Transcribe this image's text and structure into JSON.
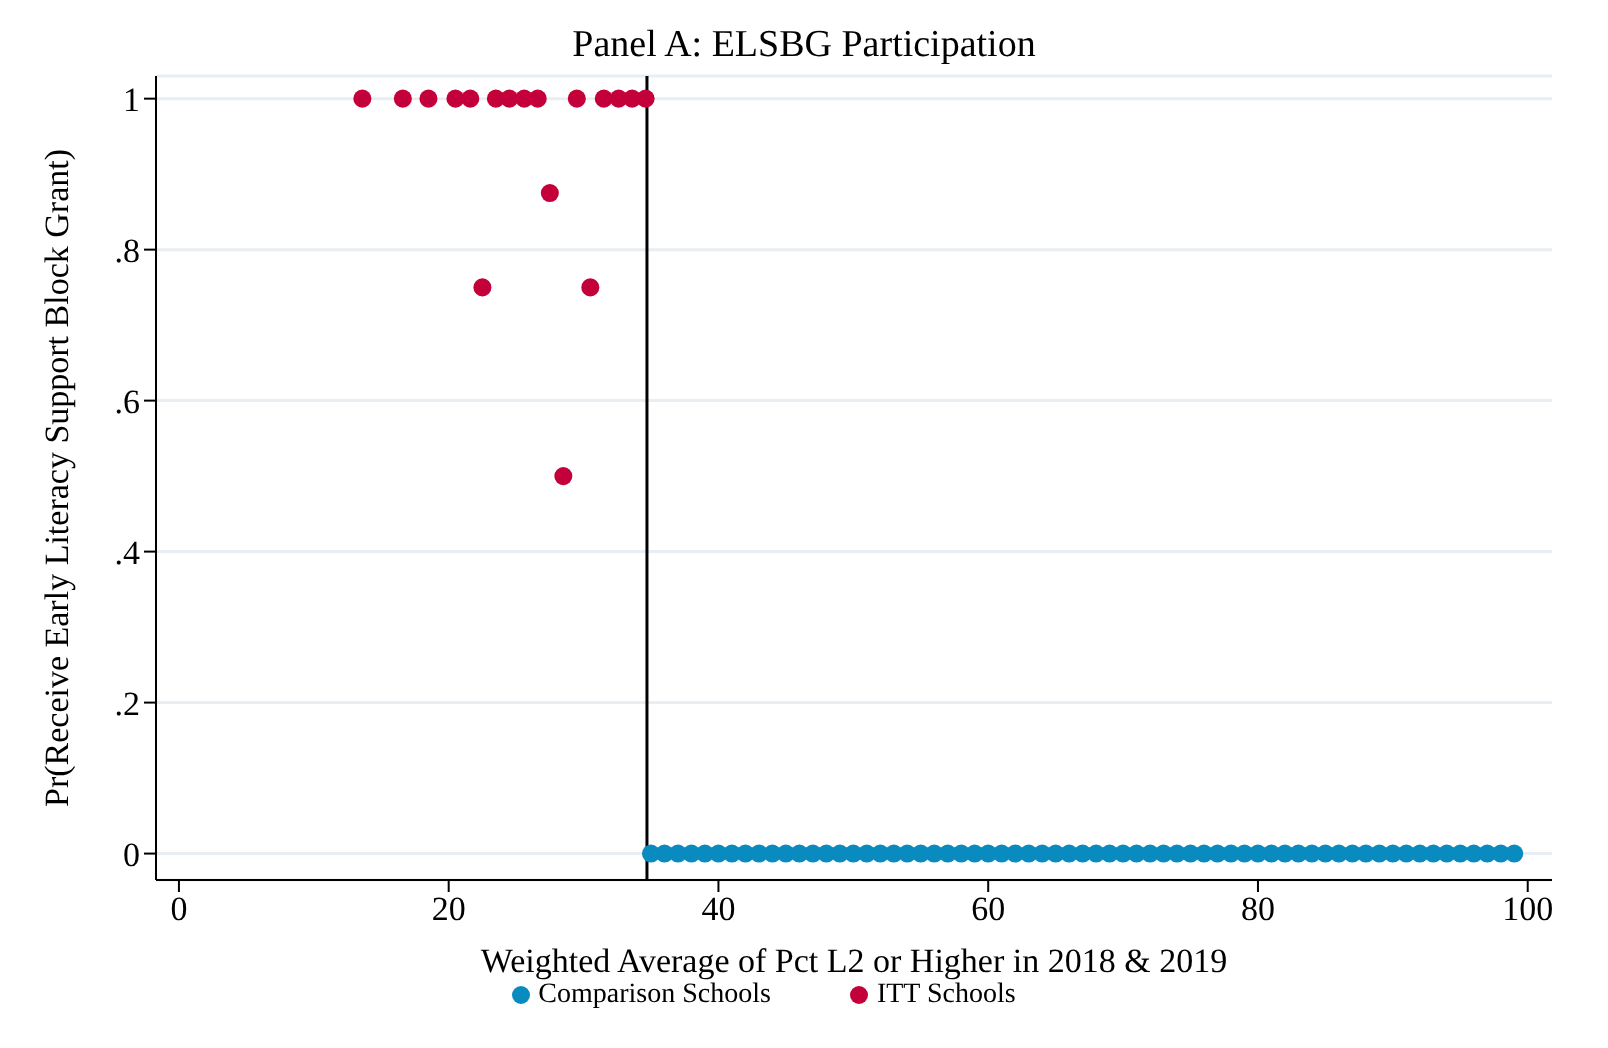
{
  "chart_data": {
    "type": "scatter",
    "title": "Panel A: ELSBG Participation",
    "xlabel": "Weighted Average of Pct L2 or Higher in 2018 & 2019",
    "ylabel": "Pr(Receive Early Literacy Support Block Grant)",
    "series": [
      {
        "name": "ITT Schools",
        "color": "#c4003a",
        "x": [
          13.6,
          16.6,
          18.5,
          20.5,
          21.6,
          23.5,
          24.5,
          25.6,
          26.6,
          29.5,
          31.5,
          32.6,
          33.6,
          34.6,
          27.5,
          22.5,
          30.5,
          28.5
        ],
        "values": [
          1,
          1,
          1,
          1,
          1,
          1,
          1,
          1,
          1,
          1,
          1,
          1,
          1,
          1,
          0.875,
          0.75,
          0.75,
          0.5
        ]
      },
      {
        "name": "Comparison Schools",
        "color": "#0a8bbf",
        "x": [
          35,
          36,
          37,
          38,
          39,
          40,
          41,
          42,
          43,
          44,
          45,
          46,
          47,
          48,
          49,
          50,
          51,
          52,
          53,
          54,
          55,
          56,
          57,
          58,
          59,
          60,
          61,
          62,
          63,
          64,
          65,
          66,
          67,
          68,
          69,
          70,
          71,
          72,
          73,
          74,
          75,
          76,
          77,
          78,
          79,
          80,
          81,
          82,
          83,
          84,
          85,
          86,
          87,
          88,
          89,
          90,
          91,
          92,
          93,
          94,
          95,
          96,
          97,
          98,
          99
        ],
        "values": [
          0,
          0,
          0,
          0,
          0,
          0,
          0,
          0,
          0,
          0,
          0,
          0,
          0,
          0,
          0,
          0,
          0,
          0,
          0,
          0,
          0,
          0,
          0,
          0,
          0,
          0,
          0,
          0,
          0,
          0,
          0,
          0,
          0,
          0,
          0,
          0,
          0,
          0,
          0,
          0,
          0,
          0,
          0,
          0,
          0,
          0,
          0,
          0,
          0,
          0,
          0,
          0,
          0,
          0,
          0,
          0,
          0,
          0,
          0,
          0,
          0,
          0,
          0,
          0,
          0
        ]
      }
    ],
    "xlim": [
      -1.7,
      101.8
    ],
    "xticks": [
      0,
      20,
      40,
      60,
      80,
      100
    ],
    "ylim": [
      -0.035,
      1.03
    ],
    "yticks": [
      0,
      {
        "value": 0.2,
        "label": ".2"
      },
      {
        "value": 0.4,
        "label": ".4"
      },
      {
        "value": 0.6,
        "label": ".6"
      },
      {
        "value": 0.8,
        "label": ".8"
      },
      1
    ],
    "ref_lines": [
      {
        "axis": "x",
        "value": 34.7,
        "color": "#000000"
      }
    ],
    "grid": "y",
    "legend": "bottom",
    "marker": "circle"
  }
}
